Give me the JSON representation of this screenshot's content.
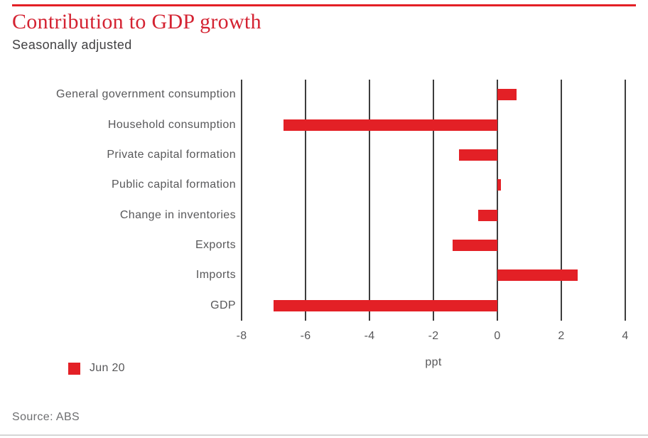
{
  "header": {
    "title": "Contribution to GDP growth",
    "subtitle": "Seasonally adjusted"
  },
  "chart_data": {
    "type": "bar",
    "orientation": "horizontal",
    "title": "Contribution to GDP growth",
    "subtitle": "Seasonally adjusted",
    "categories": [
      "General government consumption",
      "Household consumption",
      "Private capital formation",
      "Public capital formation",
      "Change in inventories",
      "Exports",
      "Imports",
      "GDP"
    ],
    "series": [
      {
        "name": "Jun 20",
        "values": [
          0.6,
          -6.7,
          -1.2,
          0.1,
          -0.6,
          -1.4,
          2.5,
          -7.0
        ]
      }
    ],
    "xlabel": "ppt",
    "ylabel": "",
    "xlim": [
      -8,
      4
    ],
    "xticks": [
      -8,
      -6,
      -4,
      -2,
      0,
      2,
      4
    ],
    "tick_labels": [
      "-8",
      "-6",
      "-4",
      "-2",
      "0",
      "2",
      "4"
    ],
    "grid": "vertical-only",
    "legend_position": "bottom-left",
    "bar_color": "#e32026"
  },
  "legend": {
    "items": [
      {
        "label": "Jun 20",
        "color": "#e32026"
      }
    ]
  },
  "footer": {
    "source": "Source: ABS"
  },
  "colors": {
    "accent_red": "#e32026",
    "title_red": "#d42332",
    "text_gray": "#58585a",
    "subtitle_gray": "#414042",
    "gridline_gray": "#3d3d3d",
    "divider_gray": "#d6d6d6"
  }
}
